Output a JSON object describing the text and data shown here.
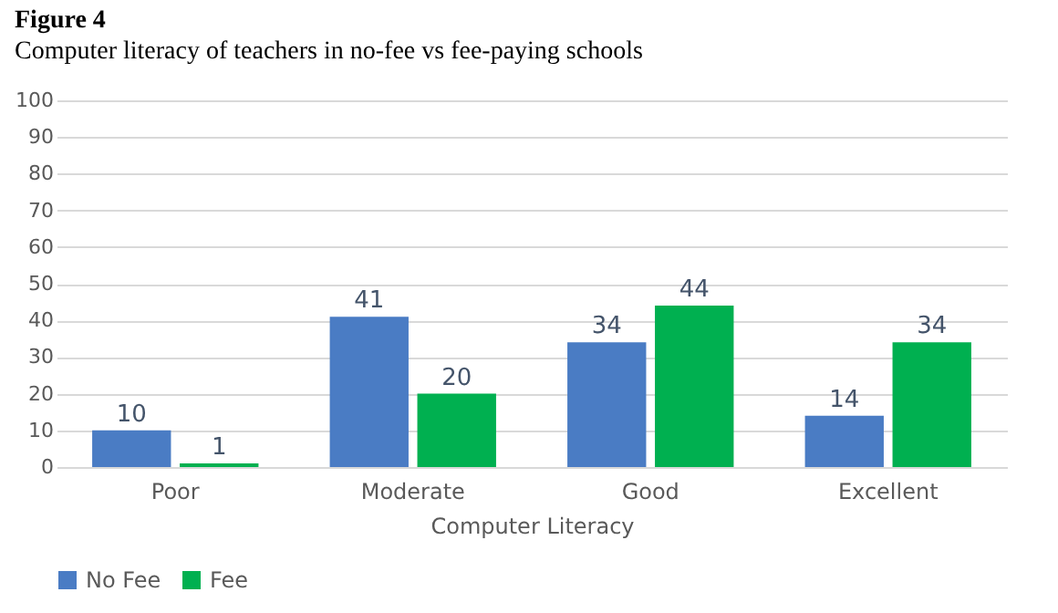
{
  "chart_data": {
    "type": "bar",
    "title": "Figure 4",
    "subtitle": "Computer literacy of teachers in no-fee vs fee-paying schools",
    "xlabel": "Computer Literacy",
    "categories": [
      "Poor",
      "Moderate",
      "Good",
      "Excellent"
    ],
    "series": [
      {
        "name": "No Fee",
        "color": "#4a7cc4",
        "values": [
          10,
          41,
          34,
          14
        ]
      },
      {
        "name": "Fee",
        "color": "#00b050",
        "values": [
          1,
          20,
          44,
          34
        ]
      }
    ],
    "ylim": [
      0,
      100
    ],
    "yticks": [
      0,
      10,
      20,
      30,
      40,
      50,
      60,
      70,
      80,
      90,
      100
    ],
    "grid": "y",
    "legend": "bottom",
    "data_labels": true
  }
}
